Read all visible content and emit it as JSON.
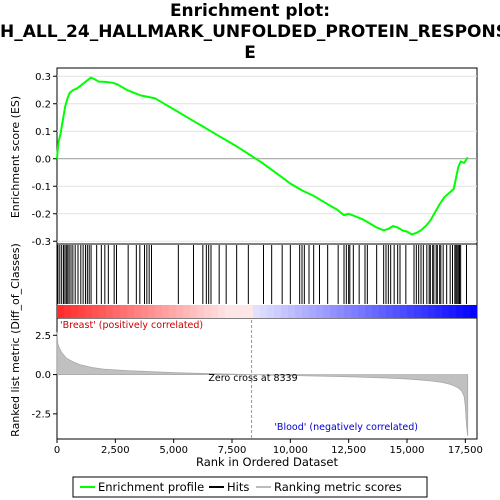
{
  "figure": {
    "title_lines": [
      "Enrichment plot:",
      "H_ALL_24_HALLMARK_UNFOLDED_PROTEIN_RESPONS",
      "E"
    ]
  },
  "chart_data": [
    {
      "type": "line",
      "panel": "enrichment-profile",
      "ylabel": "Enrichment score (ES)",
      "ylim": [
        -0.31,
        0.33
      ],
      "yticks": [
        -0.3,
        -0.2,
        -0.1,
        0.0,
        0.1,
        0.2,
        0.3
      ],
      "ytick_labels": [
        "-0.3",
        "-0.2",
        "-0.1",
        "0.0",
        "0.1",
        "0.2",
        "0.3"
      ],
      "xlim": [
        0,
        18000
      ],
      "color": "#00ff00",
      "series": [
        {
          "x": [
            0,
            60,
            150,
            250,
            350,
            450,
            550,
            700,
            850,
            1000,
            1150,
            1300,
            1450,
            1600,
            1800,
            2000,
            2200,
            2400,
            2600,
            2800,
            3000,
            3300,
            3600,
            3900,
            4200,
            4600,
            5000,
            5400,
            5800,
            6200,
            6600,
            7000,
            7400,
            7800,
            8339,
            8800,
            9200,
            9600,
            10000,
            10500,
            11000,
            11500,
            12000,
            12300,
            12500,
            12800,
            13100,
            13400,
            13700,
            14000,
            14200,
            14400,
            14600,
            14800,
            15000,
            15200,
            15400,
            15600,
            15800,
            16000,
            16200,
            16400,
            16600,
            16800,
            17000,
            17100,
            17200,
            17300,
            17450,
            17600
          ],
          "y": [
            0.0,
            0.06,
            0.09,
            0.14,
            0.19,
            0.22,
            0.24,
            0.25,
            0.255,
            0.265,
            0.275,
            0.285,
            0.295,
            0.29,
            0.28,
            0.28,
            0.278,
            0.276,
            0.27,
            0.26,
            0.25,
            0.24,
            0.23,
            0.225,
            0.22,
            0.2,
            0.18,
            0.16,
            0.14,
            0.12,
            0.1,
            0.08,
            0.06,
            0.04,
            0.01,
            -0.015,
            -0.04,
            -0.065,
            -0.09,
            -0.115,
            -0.135,
            -0.16,
            -0.185,
            -0.205,
            -0.2,
            -0.21,
            -0.22,
            -0.235,
            -0.25,
            -0.26,
            -0.255,
            -0.245,
            -0.25,
            -0.26,
            -0.265,
            -0.275,
            -0.27,
            -0.26,
            -0.245,
            -0.225,
            -0.195,
            -0.165,
            -0.14,
            -0.125,
            -0.11,
            -0.07,
            -0.03,
            -0.01,
            -0.015,
            0.005
          ]
        }
      ]
    },
    {
      "type": "scatter",
      "panel": "hits",
      "hit_positions": [
        40,
        120,
        200,
        280,
        340,
        400,
        460,
        520,
        600,
        680,
        780,
        900,
        1020,
        1120,
        1220,
        1300,
        1380,
        1460,
        1700,
        1900,
        2050,
        2200,
        2450,
        2550,
        3050,
        3400,
        3550,
        3750,
        3850,
        3950,
        4050,
        5200,
        5850,
        6250,
        6400,
        6500,
        6600,
        6950,
        7250,
        7700,
        8200,
        8850,
        9200,
        9650,
        10000,
        10400,
        10500,
        10600,
        10800,
        11000,
        11250,
        11600,
        12050,
        12300,
        12400,
        12500,
        12550,
        12700,
        12950,
        13200,
        13300,
        13700,
        14000,
        14100,
        14200,
        14300,
        14450,
        14600,
        14700,
        14950,
        15300,
        15400,
        15500,
        15600,
        15700,
        15850,
        15950,
        16000,
        16100,
        16150,
        16250,
        16300,
        16400,
        16450,
        16550,
        16700,
        16850,
        16950,
        17050,
        17100,
        17150,
        17200,
        17250,
        17300,
        17550
      ]
    },
    {
      "type": "area",
      "panel": "ranking-metric",
      "ylabel": "Ranked list metric (Diff_of_Classes)",
      "xlabel": "Rank in Ordered Dataset",
      "ylim": [
        -4.1,
        3.6
      ],
      "yticks": [
        -2.5,
        0.0,
        2.5
      ],
      "ytick_labels": [
        "-2.5",
        "0.0",
        "2.5"
      ],
      "xticks": [
        0,
        2500,
        5000,
        7500,
        10000,
        12500,
        15000,
        17500
      ],
      "xtick_labels": [
        "0",
        "2,500",
        "5,000",
        "7,500",
        "10,000",
        "12,500",
        "15,000",
        "17,500"
      ],
      "x": [
        0,
        30,
        100,
        200,
        400,
        700,
        1000,
        1500,
        2000,
        3000,
        4000,
        5000,
        6000,
        7000,
        8339,
        9000,
        10000,
        11000,
        12000,
        13000,
        14000,
        15000,
        15500,
        16000,
        16500,
        16800,
        17000,
        17200,
        17350,
        17450,
        17500,
        17550,
        17600
      ],
      "values": [
        2.7,
        2.0,
        1.7,
        1.4,
        1.05,
        0.8,
        0.62,
        0.45,
        0.35,
        0.25,
        0.18,
        0.12,
        0.08,
        0.04,
        0.0,
        -0.03,
        -0.06,
        -0.09,
        -0.12,
        -0.16,
        -0.21,
        -0.28,
        -0.33,
        -0.4,
        -0.5,
        -0.6,
        -0.7,
        -0.85,
        -1.05,
        -1.4,
        -2.0,
        -3.2,
        -3.9
      ],
      "zero_cross_label": "Zero cross at 8339",
      "zero_cross": 8339,
      "positive_label": "'Breast' (positively correlated)",
      "negative_label": "'Blood' (negatively correlated)",
      "positive_color": "#cc0000",
      "negative_color": "#0000cc"
    }
  ],
  "legend": {
    "placement": "bottom",
    "items": [
      {
        "label": "Enrichment profile",
        "color": "#00ff00"
      },
      {
        "label": "Hits",
        "color": "#000000"
      },
      {
        "label": "Ranking metric scores",
        "color": "#bbbbbb"
      }
    ]
  }
}
